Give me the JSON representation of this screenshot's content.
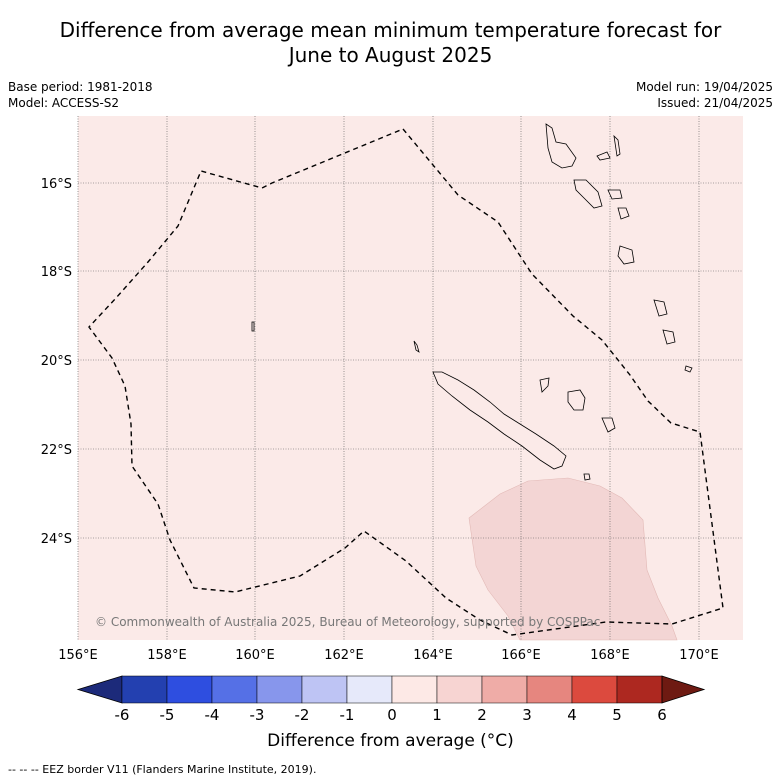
{
  "header": {
    "title_line1": "Difference from average mean minimum temperature forecast for",
    "title_line2": "June to August 2025",
    "base_period": "Base period: 1981-2018",
    "model": "Model: ACCESS-S2",
    "model_run": "Model run: 19/04/2025",
    "issued": "Issued: 21/04/2025"
  },
  "map": {
    "lon_ticks": [
      "156°E",
      "158°E",
      "160°E",
      "162°E",
      "164°E",
      "166°E",
      "168°E",
      "170°E"
    ],
    "lat_ticks": [
      "16°S",
      "18°S",
      "20°S",
      "22°S",
      "24°S"
    ],
    "copyright": "© Commonwealth of Australia 2025, Bureau of Meteorology, supported by COSPPac",
    "background_category_color": "#fbeae8",
    "warm_region_color": "#f3d5d4"
  },
  "colorbar": {
    "ticks": [
      "-6",
      "-5",
      "-4",
      "-3",
      "-2",
      "-1",
      "0",
      "1",
      "2",
      "3",
      "4",
      "5",
      "6"
    ],
    "colors": [
      "#1c2a7a",
      "#2340b0",
      "#2e4ee0",
      "#5570e6",
      "#8796ec",
      "#bec4f4",
      "#e6e9fa",
      "#fde9e6",
      "#f7d4d2",
      "#efaca7",
      "#e6867f",
      "#dc4a3e",
      "#ad2820",
      "#6e1a12"
    ],
    "label": "Difference from average (°C)"
  },
  "footer": {
    "legend": "--  --  -- EEZ border V11 (Flanders Marine Institute, 2019)."
  }
}
